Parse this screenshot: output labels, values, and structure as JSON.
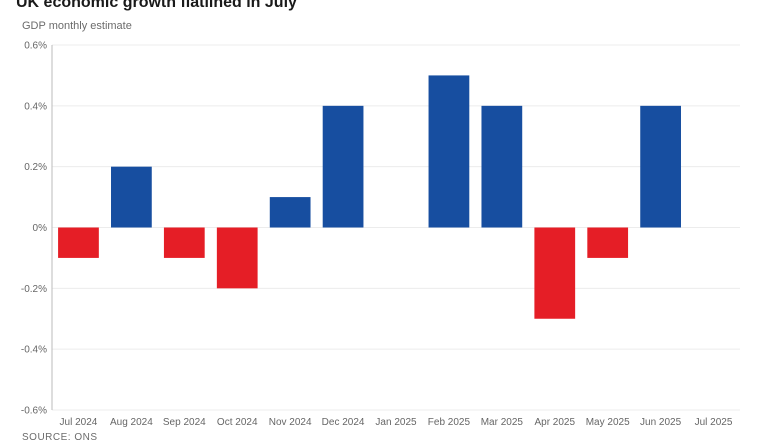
{
  "header": {
    "title": "UK economic growth flatlined in July",
    "subtitle": "GDP monthly estimate",
    "source": "SOURCE: ONS"
  },
  "chart_data": {
    "type": "bar",
    "categories": [
      "Jul 2024",
      "Aug 2024",
      "Sep 2024",
      "Oct 2024",
      "Nov 2024",
      "Dec 2024",
      "Jan 2025",
      "Feb 2025",
      "Mar 2025",
      "Apr 2025",
      "May 2025",
      "Jun 2025",
      "Jul 2025"
    ],
    "values": [
      -0.1,
      0.2,
      -0.1,
      -0.2,
      0.1,
      0.4,
      0.0,
      0.5,
      0.4,
      -0.3,
      -0.1,
      0.4,
      0.0
    ],
    "ylim": [
      -0.6,
      0.6
    ],
    "yticks": [
      0.6,
      0.4,
      0.2,
      0,
      -0.2,
      -0.4,
      -0.6
    ],
    "ytick_labels": [
      "0.6%",
      "0.4%",
      "0.2%",
      "0%",
      "-0.2%",
      "-0.4%",
      "-0.6%"
    ],
    "grid": true,
    "colors": {
      "positive": "#174ea0",
      "negative": "#e51e26",
      "grid": "#ececec",
      "axis": "#bbbbbb"
    }
  }
}
